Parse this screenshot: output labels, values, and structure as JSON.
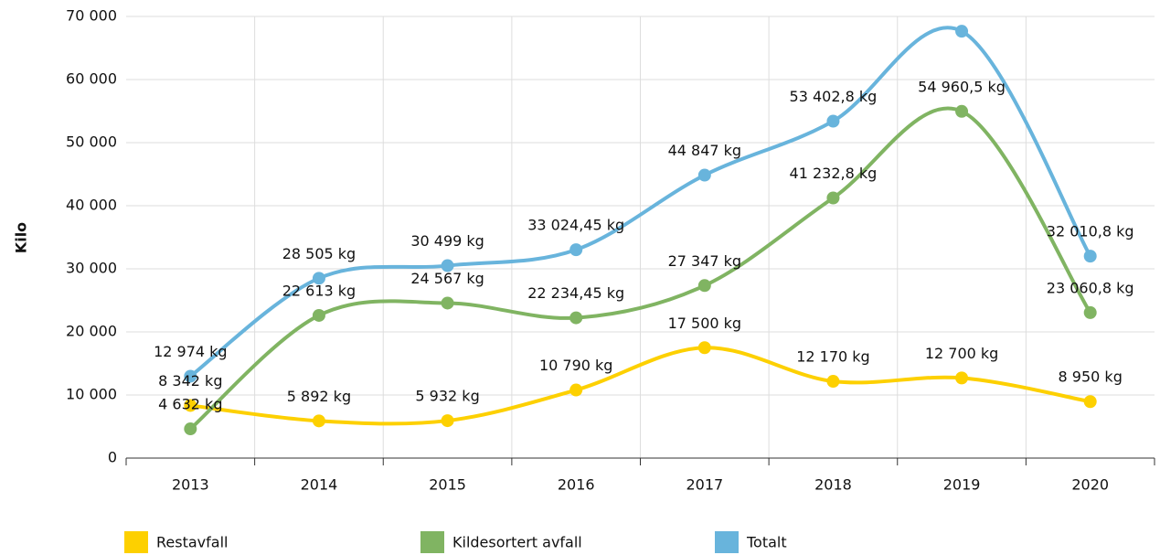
{
  "chart_data": {
    "type": "line",
    "y_label": "Kilo",
    "categories": [
      "2013",
      "2014",
      "2015",
      "2016",
      "2017",
      "2018",
      "2019",
      "2020"
    ],
    "series": [
      {
        "name": "Restavfall",
        "color": "#fdd000",
        "values": [
          8342,
          5892,
          5932,
          10790,
          17500,
          12170,
          12700,
          8950
        ],
        "value_labels": [
          "8 342 kg",
          "5 892 kg",
          "5 932 kg",
          "10 790 kg",
          "17 500 kg",
          "12 170 kg",
          "12 700 kg",
          "8 950 kg"
        ]
      },
      {
        "name": "Kildesortert avfall",
        "color": "#80b462",
        "values": [
          4632,
          22613,
          24567,
          22234.45,
          27347,
          41232.8,
          54960.5,
          23060.8
        ],
        "value_labels": [
          "4 632 kg",
          "22 613 kg",
          "24 567 kg",
          "22 234,45 kg",
          "27 347 kg",
          "41 232,8 kg",
          "54 960,5 kg",
          "23 060,8 kg"
        ]
      },
      {
        "name": "Totalt",
        "color": "#68b4dc",
        "values": [
          12974,
          28505,
          30499,
          33024.45,
          44847,
          53402.8,
          67660.5,
          32010.8
        ],
        "value_labels": [
          "12 974 kg",
          "28 505 kg",
          "30 499 kg",
          "33 024,45 kg",
          "44 847 kg",
          "53 402,8 kg",
          null,
          "32 010,8 kg"
        ]
      }
    ],
    "ylim": [
      0,
      70000
    ],
    "yticks": [
      0,
      {
        "value": 10000,
        "label": "10 000"
      },
      {
        "value": 20000,
        "label": "20 000"
      },
      {
        "value": 30000,
        "label": "30 000"
      },
      {
        "value": 40000,
        "label": "40 000"
      },
      {
        "value": 50000,
        "label": "50 000"
      },
      {
        "value": 60000,
        "label": "60 000"
      },
      {
        "value": 70000,
        "label": "70 000"
      }
    ],
    "grid": true,
    "legend": "bottom"
  }
}
